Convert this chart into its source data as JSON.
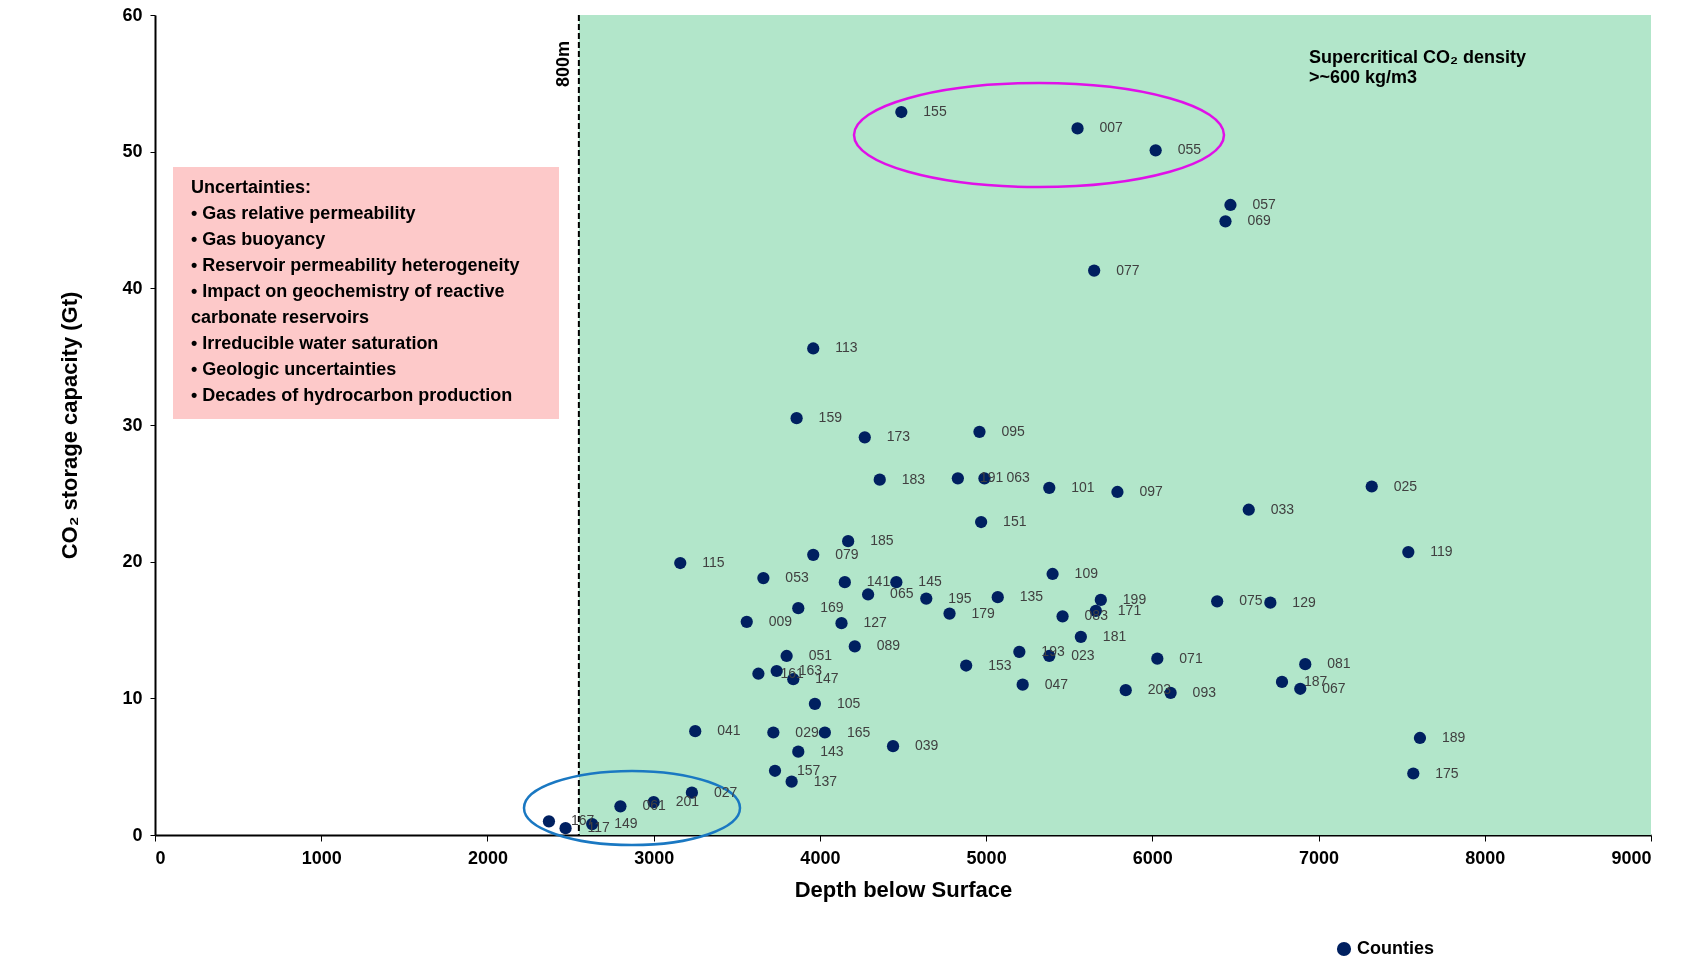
{
  "chart_data": {
    "type": "scatter",
    "xlabel": "Depth below Surface",
    "ylabel": "CO₂ storage capacity (Gt)",
    "x": [
      4490,
      5550,
      6020,
      6470,
      6440,
      5650,
      3960,
      3860,
      4270,
      4960,
      4360,
      4830,
      4990,
      5380,
      5790,
      6580,
      7320,
      4970,
      4170,
      3960,
      3160,
      7540,
      5400,
      3660,
      4150,
      4460,
      4290,
      4640,
      5070,
      5690,
      6390,
      6710,
      3870,
      5660,
      4780,
      5460,
      3560,
      4130,
      5570,
      4210,
      3800,
      5200,
      5380,
      6030,
      6920,
      4880,
      3630,
      3740,
      3840,
      6780,
      5220,
      5840,
      6110,
      6890,
      3970,
      3250,
      3720,
      4030,
      7610,
      3870,
      4440,
      3730,
      7570,
      3830,
      3230,
      3000,
      2800,
      2370,
      2470,
      2630
    ],
    "series": [
      {
        "name": "Counties",
        "color": "#002060",
        "values": [
          52.9,
          51.7,
          50.1,
          46.1,
          44.9,
          41.3,
          35.6,
          30.5,
          29.1,
          29.5,
          26.0,
          26.1,
          26.1,
          25.4,
          25.1,
          23.8,
          25.5,
          22.9,
          21.5,
          20.5,
          19.9,
          20.7,
          19.1,
          18.8,
          18.5,
          18.5,
          17.6,
          17.3,
          17.4,
          17.2,
          17.1,
          17.0,
          16.6,
          16.4,
          16.2,
          16.0,
          15.6,
          15.5,
          14.5,
          13.8,
          13.1,
          13.4,
          13.1,
          12.9,
          12.5,
          12.4,
          11.8,
          12.0,
          11.4,
          11.2,
          11.0,
          10.6,
          10.4,
          10.7,
          9.6,
          7.6,
          7.5,
          7.5,
          7.1,
          6.1,
          6.5,
          4.7,
          4.5,
          3.9,
          3.1,
          2.4,
          2.1,
          1.0,
          0.5,
          0.8
        ]
      }
    ],
    "xlim": [
      0,
      9000
    ],
    "ylim": [
      0,
      60
    ],
    "xticks": [
      0,
      1000,
      2000,
      3000,
      4000,
      5000,
      6000,
      7000,
      8000,
      9000
    ],
    "yticks": [
      0,
      10,
      20,
      30,
      40,
      50,
      60
    ],
    "marker": "circle",
    "legend": "bottom",
    "ref_lines": [
      {
        "axis": "x",
        "value": 2550,
        "label": "800m",
        "color": "#000000",
        "line_style": "dashed"
      }
    ],
    "bands": [
      {
        "axis": "x",
        "from": 2550,
        "to": 9000,
        "label": "Supercritical CO₂ density\n>~600 kg/m3",
        "color": "#b2e6ca"
      }
    ],
    "annotations": [
      "Uncertainties:\n• Gas relative permeability\n• Gas buoyancy\n• Reservoir permeability heterogeneity\n• Impact on geochemistry of reactive\n   carbonate reservoirs\n• Irreducible water saturation\n• Geologic uncertainties\n• Decades of hydrocarbon production",
      {
        "text": "155",
        "x": 4490,
        "y": 52.9
      },
      {
        "text": "007",
        "x": 5550,
        "y": 51.7
      },
      {
        "text": "055",
        "x": 6020,
        "y": 50.1
      },
      {
        "text": "057",
        "x": 6470,
        "y": 46.1
      },
      {
        "text": "069",
        "x": 6440,
        "y": 44.9
      },
      {
        "text": "077",
        "x": 5650,
        "y": 41.3
      },
      {
        "text": "113",
        "x": 3960,
        "y": 35.6
      },
      {
        "text": "159",
        "x": 3860,
        "y": 30.5
      },
      {
        "text": "173",
        "x": 4270,
        "y": 29.1
      },
      {
        "text": "095",
        "x": 4960,
        "y": 29.5
      },
      {
        "text": "183",
        "x": 4360,
        "y": 26.0
      },
      {
        "text": "191",
        "x": 4830,
        "y": 26.1
      },
      {
        "text": "063",
        "x": 4990,
        "y": 26.1
      },
      {
        "text": "101",
        "x": 5380,
        "y": 25.4
      },
      {
        "text": "097",
        "x": 5790,
        "y": 25.1
      },
      {
        "text": "033",
        "x": 6580,
        "y": 23.8
      },
      {
        "text": "025",
        "x": 7320,
        "y": 25.5
      },
      {
        "text": "151",
        "x": 4970,
        "y": 22.9
      },
      {
        "text": "185",
        "x": 4170,
        "y": 21.5
      },
      {
        "text": "079",
        "x": 3960,
        "y": 20.5
      },
      {
        "text": "115",
        "x": 3160,
        "y": 19.9
      },
      {
        "text": "119",
        "x": 7540,
        "y": 20.7
      },
      {
        "text": "109",
        "x": 5400,
        "y": 19.1
      },
      {
        "text": "053",
        "x": 3660,
        "y": 18.8
      },
      {
        "text": "141",
        "x": 4150,
        "y": 18.5
      },
      {
        "text": "145",
        "x": 4460,
        "y": 18.5
      },
      {
        "text": "065",
        "x": 4290,
        "y": 17.6
      },
      {
        "text": "195",
        "x": 4640,
        "y": 17.3
      },
      {
        "text": "135",
        "x": 5070,
        "y": 17.4
      },
      {
        "text": "199",
        "x": 5690,
        "y": 17.2
      },
      {
        "text": "075",
        "x": 6390,
        "y": 17.1
      },
      {
        "text": "129",
        "x": 6710,
        "y": 17.0
      },
      {
        "text": "169",
        "x": 3870,
        "y": 16.6
      },
      {
        "text": "171",
        "x": 5660,
        "y": 16.4
      },
      {
        "text": "179",
        "x": 4780,
        "y": 16.2
      },
      {
        "text": "083",
        "x": 5460,
        "y": 16.0
      },
      {
        "text": "009",
        "x": 3560,
        "y": 15.6
      },
      {
        "text": "127",
        "x": 4130,
        "y": 15.5
      },
      {
        "text": "181",
        "x": 5570,
        "y": 14.5
      },
      {
        "text": "089",
        "x": 4210,
        "y": 13.8
      },
      {
        "text": "051",
        "x": 3800,
        "y": 13.1
      },
      {
        "text": "193",
        "x": 5200,
        "y": 13.4
      },
      {
        "text": "023",
        "x": 5380,
        "y": 13.1
      },
      {
        "text": "071",
        "x": 6030,
        "y": 12.9
      },
      {
        "text": "081",
        "x": 6920,
        "y": 12.5
      },
      {
        "text": "153",
        "x": 4880,
        "y": 12.4
      },
      {
        "text": "161",
        "x": 3630,
        "y": 11.8
      },
      {
        "text": "163",
        "x": 3740,
        "y": 12.0
      },
      {
        "text": "147",
        "x": 3840,
        "y": 11.4
      },
      {
        "text": "187",
        "x": 6780,
        "y": 11.2
      },
      {
        "text": "047",
        "x": 5220,
        "y": 11.0
      },
      {
        "text": "203",
        "x": 5840,
        "y": 10.6
      },
      {
        "text": "093",
        "x": 6110,
        "y": 10.4
      },
      {
        "text": "067",
        "x": 6890,
        "y": 10.7
      },
      {
        "text": "105",
        "x": 3970,
        "y": 9.6
      },
      {
        "text": "041",
        "x": 3250,
        "y": 7.6
      },
      {
        "text": "029",
        "x": 3720,
        "y": 7.5
      },
      {
        "text": "165",
        "x": 4030,
        "y": 7.5
      },
      {
        "text": "189",
        "x": 7610,
        "y": 7.1
      },
      {
        "text": "143",
        "x": 3870,
        "y": 6.1
      },
      {
        "text": "039",
        "x": 4440,
        "y": 6.5
      },
      {
        "text": "157",
        "x": 3730,
        "y": 4.7
      },
      {
        "text": "175",
        "x": 7570,
        "y": 4.5
      },
      {
        "text": "137",
        "x": 3830,
        "y": 3.9
      },
      {
        "text": "027",
        "x": 3230,
        "y": 3.1
      },
      {
        "text": "201",
        "x": 3000,
        "y": 2.4
      },
      {
        "text": "061",
        "x": 2800,
        "y": 2.1
      },
      {
        "text": "167",
        "x": 2370,
        "y": 1.0
      },
      {
        "text": "117",
        "x": 2470,
        "y": 0.5
      },
      {
        "text": "149",
        "x": 2630,
        "y": 0.8
      }
    ]
  }
}
